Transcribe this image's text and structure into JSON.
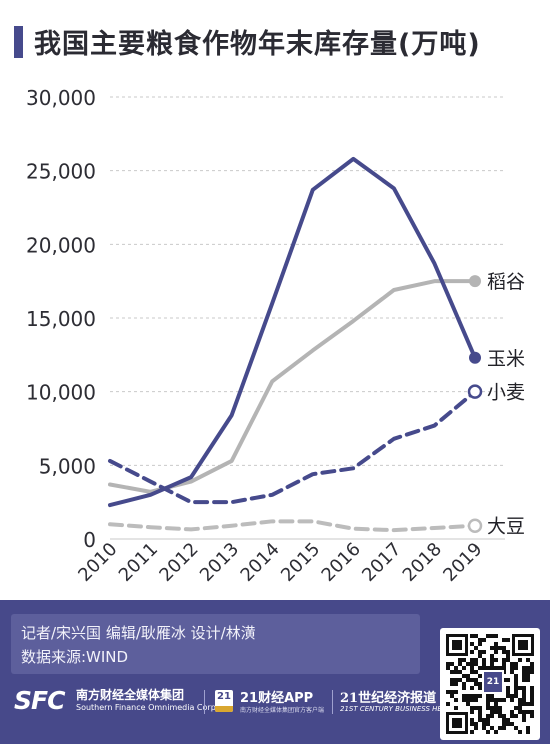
{
  "title": "我国主要粮食作物年末库存量(万吨)",
  "credits": {
    "line1": "记者/宋兴国  编辑/耿雁冰  设计/林潢",
    "line2": "数据来源:WIND"
  },
  "logos": {
    "sfc_mark": "SFC",
    "sfc_cn": "南方财经全媒体集团",
    "sfc_en": "Southern Finance Omnimedia Corp.",
    "app_badge": "21",
    "app_name": "21财经APP",
    "app_sub": "南方财经全媒体集团官方客户端",
    "herald_cn": "21世纪经济报道",
    "herald_en": "21ST CENTURY BUSINESS HERALD"
  },
  "qr_badge": "21",
  "colors": {
    "accent": "#464a8c",
    "corn": "#464a8c",
    "wheat": "#464a8c",
    "rice": "#b4b4b4",
    "soybean": "#bcbcbc",
    "footer": "#47498a"
  },
  "chart_data": {
    "type": "line",
    "title": "我国主要粮食作物年末库存量(万吨)",
    "xlabel": "",
    "ylabel": "",
    "x": [
      "2010",
      "2011",
      "2012",
      "2013",
      "2014",
      "2015",
      "2016",
      "2017",
      "2018",
      "2019"
    ],
    "ylim": [
      0,
      30000
    ],
    "yticks": [
      "0",
      "5,000",
      "10,000",
      "15,000",
      "20,000",
      "25,000",
      "30,000"
    ],
    "grid": true,
    "legend": "end-of-line labels",
    "series": [
      {
        "name": "稻谷",
        "style": "solid",
        "color": "#b4b4b4",
        "values": [
          3700,
          3200,
          3900,
          5300,
          10700,
          12800,
          14800,
          16900,
          17500,
          17500
        ]
      },
      {
        "name": "玉米",
        "style": "solid",
        "color": "#464a8c",
        "values": [
          2300,
          3000,
          4200,
          8400,
          16000,
          23700,
          25800,
          23800,
          18700,
          12300
        ]
      },
      {
        "name": "小麦",
        "style": "dashed",
        "color": "#464a8c",
        "values": [
          5300,
          3900,
          2500,
          2500,
          3000,
          4400,
          4800,
          6800,
          7700,
          10000
        ]
      },
      {
        "name": "大豆",
        "style": "dashed",
        "color": "#bcbcbc",
        "values": [
          1000,
          800,
          650,
          900,
          1200,
          1200,
          700,
          600,
          750,
          900
        ]
      }
    ]
  }
}
